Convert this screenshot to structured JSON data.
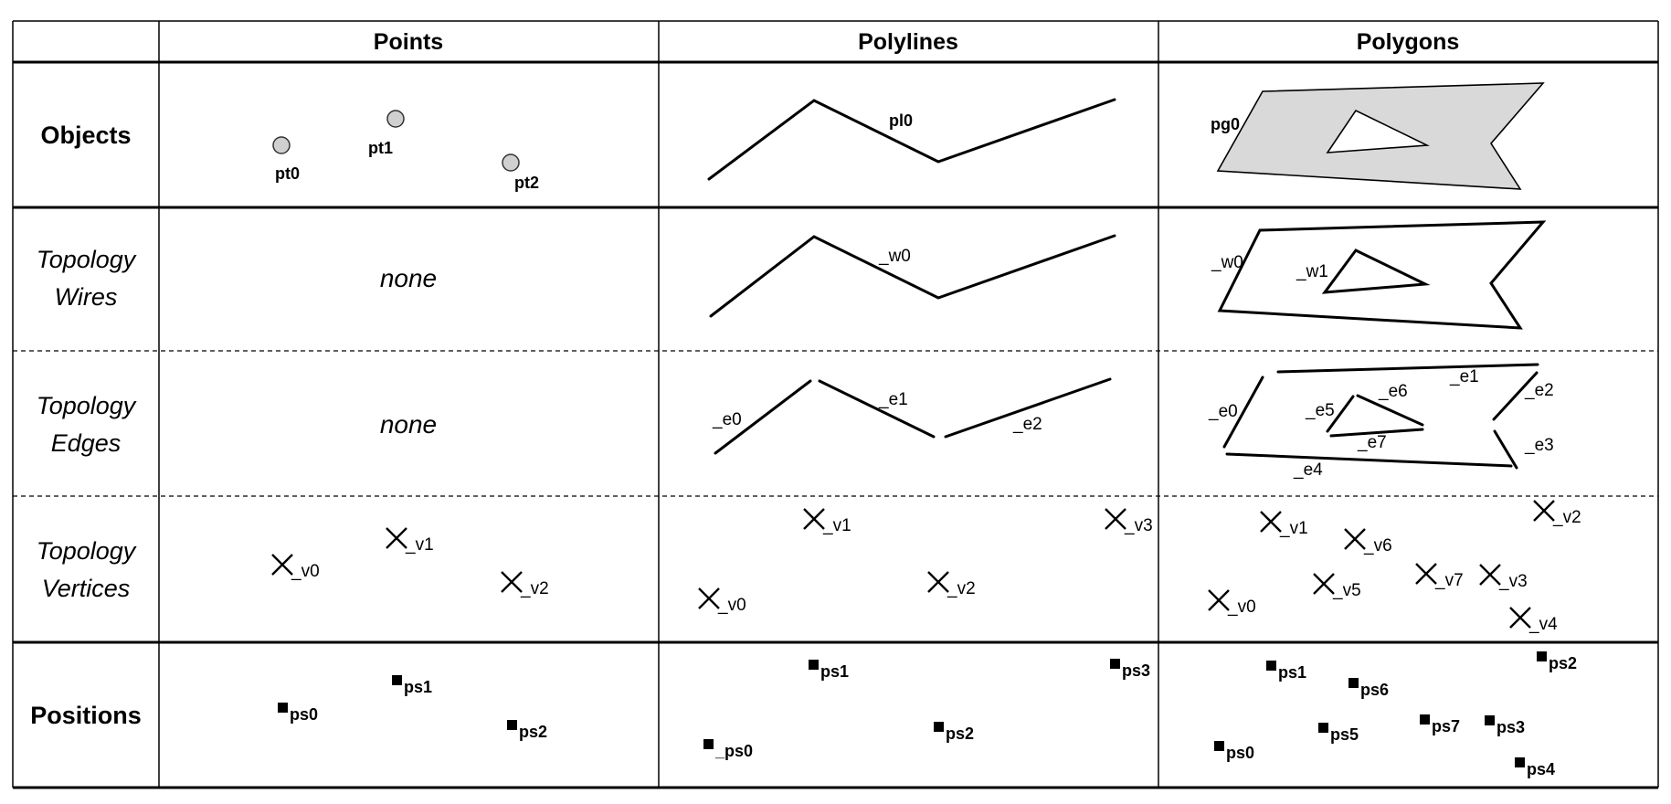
{
  "columns": {
    "points": "Points",
    "polylines": "Polylines",
    "polygons": "Polygons"
  },
  "rows": {
    "objects": "Objects",
    "wires": {
      "line1": "Topology",
      "line2": "Wires"
    },
    "edges": {
      "line1": "Topology",
      "line2": "Edges"
    },
    "vertices": {
      "line1": "Topology",
      "line2": "Vertices"
    },
    "positions": "Positions"
  },
  "none_label": "none",
  "objects": {
    "points": [
      "pt0",
      "pt1",
      "pt2"
    ],
    "polyline": "pl0",
    "polygon": "pg0"
  },
  "wires": {
    "polyline": "_w0",
    "polygon_outer": "_w0",
    "polygon_inner": "_w1"
  },
  "edges": {
    "polyline": [
      "_e0",
      "_e1",
      "_e2"
    ],
    "polygon": [
      "_e0",
      "_e1",
      "_e2",
      "_e3",
      "_e4",
      "_e5",
      "_e6",
      "_e7"
    ]
  },
  "vertices": {
    "points": [
      "_v0",
      "_v1",
      "_v2"
    ],
    "polyline": [
      "_v0",
      "_v1",
      "_v2",
      "_v3"
    ],
    "polygon": [
      "_v0",
      "_v1",
      "_v2",
      "_v3",
      "_v4",
      "_v5",
      "_v6",
      "_v7"
    ]
  },
  "positions": {
    "points": [
      "ps0",
      "ps1",
      "ps2"
    ],
    "polyline": [
      "_ps0",
      "ps1",
      "ps2",
      "ps3"
    ],
    "polygon": [
      "ps0",
      "ps1",
      "ps2",
      "ps3",
      "ps4",
      "ps5",
      "ps6",
      "ps7"
    ]
  },
  "colors": {
    "polygon_fill": "#d9d9d9",
    "point_fill": "#d0d0d0",
    "line": "#000000"
  }
}
